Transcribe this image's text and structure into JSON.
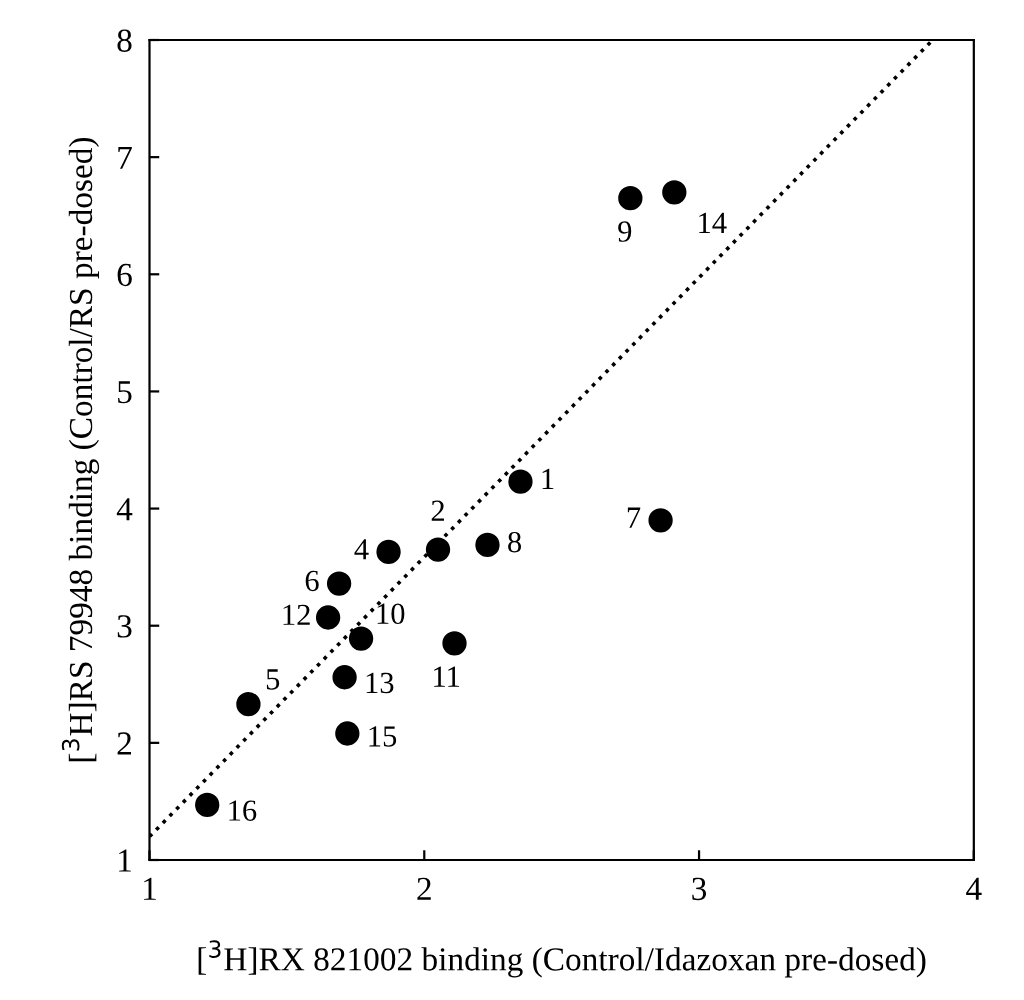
{
  "chart_data": {
    "type": "scatter",
    "xlabel": "[$^{3}$H]RX 821002 binding (Control/Idazoxan pre-dosed)",
    "ylabel": "[$^{3}$H]RS 79948 binding (Control/RS pre-dosed)",
    "xlim": [
      1,
      4
    ],
    "ylim": [
      1,
      8
    ],
    "xticks": [
      1,
      2,
      3,
      4
    ],
    "yticks": [
      1,
      2,
      3,
      4,
      5,
      6,
      7,
      8
    ],
    "grid": false,
    "legend": false,
    "series": [
      {
        "color": "#000000",
        "marker": "circle",
        "x": [
          2.35,
          2.05,
          1.87,
          1.36,
          1.69,
          2.86,
          2.23,
          2.75,
          1.77,
          2.11,
          1.65,
          1.71,
          2.91,
          1.72,
          1.21
        ],
        "values": [
          4.23,
          3.65,
          3.63,
          2.33,
          3.36,
          3.9,
          3.69,
          6.65,
          2.89,
          2.85,
          3.07,
          2.56,
          6.7,
          2.08,
          1.47
        ]
      },
      {
        "type": "line",
        "color": "#000000",
        "line_style": "dotted",
        "x": [
          1,
          3.85
        ],
        "values": [
          1.2,
          8
        ]
      }
    ],
    "annotations": [
      {
        "text": "1",
        "x": 2.35,
        "y": 4.23
      },
      {
        "text": "2",
        "x": 2.05,
        "y": 3.65
      },
      {
        "text": "4",
        "x": 1.87,
        "y": 3.63
      },
      {
        "text": "5",
        "x": 1.36,
        "y": 2.33
      },
      {
        "text": "6",
        "x": 1.69,
        "y": 3.36
      },
      {
        "text": "7",
        "x": 2.86,
        "y": 3.9
      },
      {
        "text": "8",
        "x": 2.23,
        "y": 3.69
      },
      {
        "text": "9",
        "x": 2.75,
        "y": 6.65
      },
      {
        "text": "10",
        "x": 1.77,
        "y": 2.89
      },
      {
        "text": "11",
        "x": 2.11,
        "y": 2.85
      },
      {
        "text": "12",
        "x": 1.65,
        "y": 3.07
      },
      {
        "text": "13",
        "x": 1.71,
        "y": 2.56
      },
      {
        "text": "14",
        "x": 2.91,
        "y": 6.7
      },
      {
        "text": "15",
        "x": 1.72,
        "y": 2.08
      },
      {
        "text": "16",
        "x": 1.21,
        "y": 1.47
      }
    ]
  }
}
